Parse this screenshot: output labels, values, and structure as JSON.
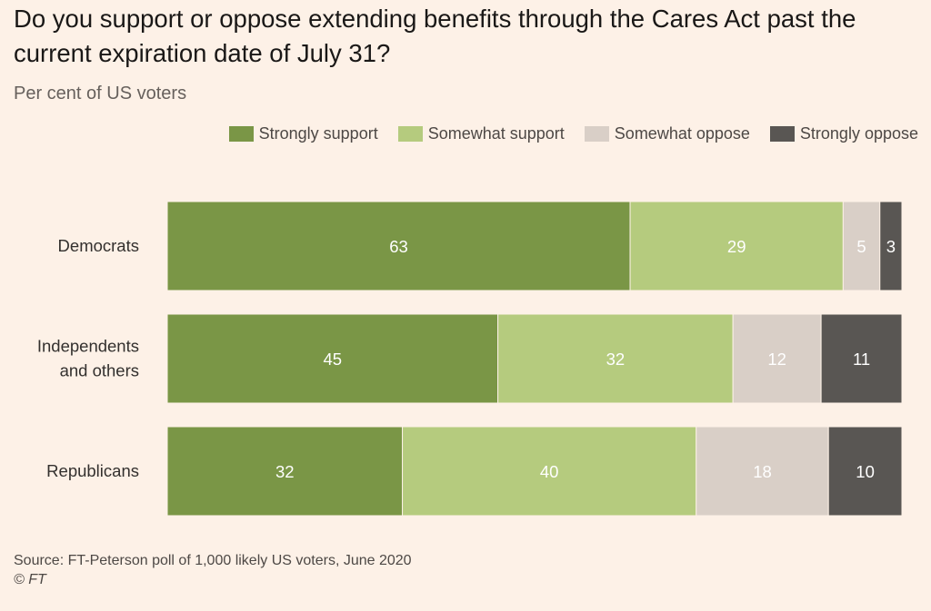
{
  "title": "Do you support or oppose extending benefits through the Cares Act past the current expiration date of July 31?",
  "subtitle": "Per cent of US voters",
  "source": "Source: FT-Peterson poll of 1,000 likely US voters, June 2020",
  "copyright": "© FT",
  "chart_data": {
    "type": "bar",
    "orientation": "horizontal",
    "stacked": true,
    "title": "Do you support or oppose extending benefits through the Cares Act past the current expiration date of July 31?",
    "subtitle": "Per cent of US voters",
    "xlabel": "",
    "ylabel": "",
    "xlim": [
      0,
      100
    ],
    "grid": false,
    "legend_position": "top-right",
    "categories": [
      [
        "Democrats"
      ],
      [
        "Independents",
        "and others"
      ],
      [
        "Republicans"
      ]
    ],
    "series": [
      {
        "name": "Strongly support",
        "color": "#7a9646",
        "label_color": "#ffffff",
        "values": [
          63,
          45,
          32
        ]
      },
      {
        "name": "Somewhat support",
        "color": "#b5cb7e",
        "label_color": "#ffffff",
        "values": [
          29,
          32,
          40
        ]
      },
      {
        "name": "Somewhat oppose",
        "color": "#d9cfc7",
        "label_color": "#ffffff",
        "values": [
          5,
          12,
          18
        ]
      },
      {
        "name": "Strongly oppose",
        "color": "#595653",
        "label_color": "#ffffff",
        "values": [
          3,
          11,
          10
        ]
      }
    ]
  }
}
